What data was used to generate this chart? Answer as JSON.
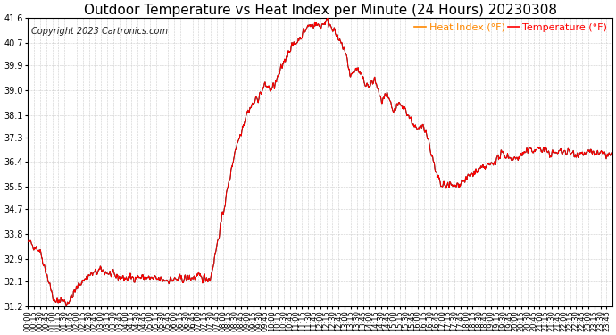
{
  "title": "Outdoor Temperature vs Heat Index per Minute (24 Hours) 20230308",
  "copyright": "Copyright 2023 Cartronics.com",
  "legend_heat": "Heat Index (°F)",
  "legend_temp": "Temperature (°F)",
  "ylim": [
    31.2,
    41.6
  ],
  "yticks": [
    31.2,
    32.1,
    32.9,
    33.8,
    34.7,
    35.5,
    36.4,
    37.3,
    38.1,
    39.0,
    39.9,
    40.7,
    41.6
  ],
  "background_color": "#ffffff",
  "grid_color": "#cccccc",
  "line_color_heat": "#ff0000",
  "line_color_temp": "#111111",
  "title_color": "#000000",
  "copyright_color": "#222222",
  "legend_heat_color": "#ff8800",
  "legend_temp_color": "#ff0000",
  "title_fontsize": 11,
  "copyright_fontsize": 7,
  "legend_fontsize": 8,
  "tick_fontsize": 7,
  "xlabel_fontsize": 6
}
